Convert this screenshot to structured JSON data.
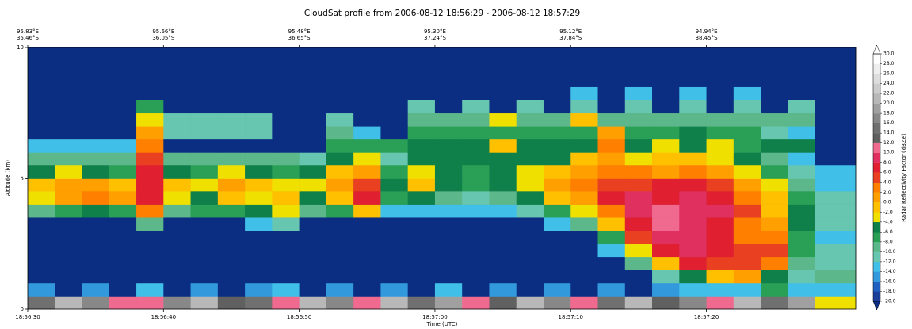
{
  "chart_data": {
    "type": "heatmap",
    "title": "CloudSat profile from 2006-08-12 18:56:29  -  2006-08-12 18:57:29",
    "xlabel": "Time (UTC)",
    "ylabel": "Altitude (km)",
    "colorbar_label": "Radar Reflectivity Factor (dBZe)",
    "xlim": [
      68190,
      68251
    ],
    "xticks": [
      {
        "value": 68190,
        "label": "18:56:30"
      },
      {
        "value": 68200,
        "label": "18:56:40"
      },
      {
        "value": 68210,
        "label": "18:56:50"
      },
      {
        "value": 68220,
        "label": "18:57:00"
      },
      {
        "value": 68230,
        "label": "18:57:10"
      },
      {
        "value": 68240,
        "label": "18:57:20"
      }
    ],
    "top_labels": [
      {
        "value": 68190,
        "lon": "95.83°E",
        "lat": "35.46°S"
      },
      {
        "value": 68200,
        "lon": "95.66°E",
        "lat": "36.05°S"
      },
      {
        "value": 68210,
        "lon": "95.48°E",
        "lat": "36.65°S"
      },
      {
        "value": 68220,
        "lon": "95.30°E",
        "lat": "37.24°S"
      },
      {
        "value": 68230,
        "lon": "95.12°E",
        "lat": "37.84°S"
      },
      {
        "value": 68240,
        "lon": "94.94°E",
        "lat": "38.45°S"
      }
    ],
    "ylim": [
      0,
      10
    ],
    "yticks": [
      0,
      5,
      10
    ],
    "clim": [
      -20,
      30
    ],
    "cticks": [
      {
        "value": -20,
        "label": "-20.0"
      },
      {
        "value": -18,
        "label": "-18.0"
      },
      {
        "value": -16,
        "label": "-16.0"
      },
      {
        "value": -14,
        "label": "-14.0"
      },
      {
        "value": -12,
        "label": "-12.0"
      },
      {
        "value": -10,
        "label": "-10.0"
      },
      {
        "value": -8,
        "label": "-8.0"
      },
      {
        "value": -6,
        "label": "-6.0"
      },
      {
        "value": -4,
        "label": "-4.0"
      },
      {
        "value": -2,
        "label": "-2.0"
      },
      {
        "value": 0,
        "label": "0.0"
      },
      {
        "value": 2,
        "label": "2.0"
      },
      {
        "value": 4,
        "label": "4.0"
      },
      {
        "value": 6,
        "label": "6.0"
      },
      {
        "value": 8,
        "label": "8.0"
      },
      {
        "value": 10,
        "label": "10.0"
      },
      {
        "value": 12,
        "label": "12.0"
      },
      {
        "value": 14,
        "label": "14.0"
      },
      {
        "value": 16,
        "label": "16.0"
      },
      {
        "value": 18,
        "label": "18.0"
      },
      {
        "value": 20,
        "label": "20.0"
      },
      {
        "value": 22,
        "label": "22.0"
      },
      {
        "value": 24,
        "label": "24.0"
      },
      {
        "value": 26,
        "label": "26.0"
      },
      {
        "value": 28,
        "label": "28.0"
      },
      {
        "value": 30,
        "label": "30.0"
      }
    ],
    "colors": [
      "#1c3f9a",
      "#2060c0",
      "#3399dd",
      "#40c0e8",
      "#66c6b0",
      "#5cb88a",
      "#2aa056",
      "#10804a",
      "#f0e000",
      "#ffc000",
      "#ffa000",
      "#ff7f00",
      "#e84020",
      "#e02030",
      "#e03060",
      "#f06a90",
      "#606060",
      "#707070",
      "#888888",
      "#a0a0a0",
      "#b8b8b8",
      "#cccccc",
      "#dddddd",
      "#eeeeee",
      "#ffffff"
    ],
    "under_color": "#0b2e83",
    "over_color": "#ffffff",
    "time_bins": [
      68190,
      68192,
      68194,
      68196,
      68198,
      68200,
      68202,
      68204,
      68206,
      68208,
      68210,
      68212,
      68214,
      68216,
      68218,
      68220,
      68222,
      68224,
      68226,
      68228,
      68230,
      68232,
      68234,
      68236,
      68238,
      68240,
      68242,
      68244,
      68246,
      68248,
      68251
    ],
    "altitude_bins": [
      0,
      0.5,
      1,
      1.5,
      2,
      2.5,
      3,
      3.5,
      4,
      4.5,
      5,
      5.5,
      6,
      6.5,
      7,
      7.5,
      8,
      8.5,
      9,
      9.5,
      10
    ],
    "z": [
      [
        14,
        20,
        16,
        10,
        10,
        16,
        20,
        12,
        14,
        10,
        20,
        16,
        10,
        20,
        14,
        18,
        10,
        12,
        20,
        16,
        10,
        14,
        20,
        12,
        16,
        10,
        20,
        14,
        18,
        -4
      ],
      [
        -16,
        -30,
        -16,
        -30,
        -14,
        -30,
        -16,
        -30,
        -16,
        -14,
        -30,
        -16,
        -30,
        -16,
        -30,
        -14,
        -30,
        -16,
        -30,
        -16,
        -30,
        -16,
        -30,
        -16,
        -14,
        -14,
        -14,
        -8,
        -14,
        -14
      ],
      [
        -30,
        -30,
        -30,
        -30,
        -30,
        -30,
        -30,
        -30,
        -30,
        -30,
        -30,
        -30,
        -30,
        -30,
        -30,
        -30,
        -30,
        -30,
        -30,
        -30,
        -30,
        -30,
        -30,
        -12,
        -6,
        -2,
        0,
        -6,
        -12,
        -10
      ],
      [
        -30,
        -30,
        -30,
        -30,
        -30,
        -30,
        -30,
        -30,
        -30,
        -30,
        -30,
        -30,
        -30,
        -30,
        -30,
        -30,
        -30,
        -30,
        -30,
        -30,
        -30,
        -30,
        -10,
        -2,
        6,
        4,
        4,
        2,
        -10,
        -12
      ],
      [
        -30,
        -30,
        -30,
        -30,
        -30,
        -30,
        -30,
        -30,
        -30,
        -30,
        -30,
        -30,
        -30,
        -30,
        -30,
        -30,
        -30,
        -30,
        -30,
        -30,
        -30,
        -14,
        -4,
        6,
        8,
        6,
        4,
        4,
        -8,
        -12
      ],
      [
        -30,
        -30,
        -30,
        -30,
        -30,
        -30,
        -30,
        -30,
        -30,
        -30,
        -30,
        -30,
        -30,
        -30,
        -30,
        -30,
        -30,
        -30,
        -30,
        -30,
        -30,
        -8,
        4,
        8,
        8,
        6,
        2,
        2,
        -8,
        -14
      ],
      [
        -30,
        -30,
        -30,
        -30,
        -10,
        -30,
        -30,
        -30,
        -14,
        -12,
        -30,
        -30,
        -30,
        -30,
        -30,
        -30,
        -30,
        -30,
        -30,
        -14,
        -10,
        -2,
        6,
        10,
        8,
        6,
        2,
        0,
        -6,
        -12
      ],
      [
        -10,
        -8,
        -6,
        -8,
        2,
        -10,
        -8,
        -8,
        -6,
        -4,
        -10,
        -8,
        -2,
        -14,
        -14,
        -14,
        -14,
        -14,
        -12,
        -8,
        -4,
        2,
        8,
        10,
        8,
        8,
        4,
        -2,
        -6,
        -12
      ],
      [
        -4,
        0,
        2,
        0,
        6,
        -4,
        -6,
        -2,
        -4,
        -2,
        -6,
        -2,
        6,
        -8,
        -6,
        -10,
        -12,
        -10,
        -6,
        -2,
        0,
        6,
        8,
        6,
        8,
        6,
        2,
        -2,
        -8,
        -12
      ],
      [
        -2,
        0,
        0,
        -2,
        6,
        -2,
        -4,
        0,
        -2,
        -4,
        -4,
        0,
        4,
        -6,
        -2,
        -6,
        -8,
        -6,
        -4,
        0,
        2,
        4,
        4,
        6,
        6,
        4,
        0,
        -4,
        -10,
        -14
      ],
      [
        -6,
        -4,
        -6,
        -8,
        6,
        -6,
        -8,
        -4,
        -6,
        -8,
        -6,
        -2,
        0,
        -8,
        -4,
        -6,
        -8,
        -6,
        -4,
        -2,
        0,
        2,
        2,
        0,
        2,
        0,
        -4,
        -8,
        -12,
        -14
      ],
      [
        -10,
        -10,
        -10,
        -10,
        4,
        -10,
        -10,
        -10,
        -10,
        -10,
        -12,
        -6,
        -4,
        -12,
        -6,
        -6,
        -6,
        -6,
        -6,
        -6,
        -2,
        0,
        -4,
        -2,
        -2,
        -4,
        -6,
        -10,
        -14,
        -30
      ],
      [
        -14,
        -14,
        -14,
        -14,
        2,
        -30,
        -30,
        -30,
        -30,
        -30,
        -30,
        -8,
        -8,
        -8,
        -6,
        -6,
        -6,
        -2,
        -6,
        -6,
        -6,
        2,
        -6,
        -4,
        -6,
        -4,
        -8,
        -6,
        -6,
        -30
      ],
      [
        -30,
        -30,
        -30,
        -30,
        0,
        -12,
        -12,
        -12,
        -12,
        -30,
        -30,
        -10,
        -14,
        -30,
        -8,
        -8,
        -8,
        -8,
        -8,
        -8,
        -8,
        0,
        -8,
        -8,
        -6,
        -8,
        -8,
        -12,
        -14,
        -30
      ],
      [
        -30,
        -30,
        -30,
        -30,
        -4,
        -12,
        -12,
        -12,
        -12,
        -30,
        -30,
        -12,
        -30,
        -30,
        -10,
        -10,
        -10,
        -4,
        -10,
        -10,
        -2,
        -10,
        -10,
        -10,
        -10,
        -10,
        -10,
        -10,
        -10,
        -30
      ],
      [
        -30,
        -30,
        -30,
        -30,
        -8,
        -30,
        -30,
        -30,
        -30,
        -30,
        -30,
        -30,
        -30,
        -30,
        -12,
        -30,
        -12,
        -30,
        -12,
        -30,
        -12,
        -30,
        -12,
        -30,
        -12,
        -30,
        -12,
        -30,
        -12,
        -30
      ],
      [
        -30,
        -30,
        -30,
        -30,
        -30,
        -30,
        -30,
        -30,
        -30,
        -30,
        -30,
        -30,
        -30,
        -30,
        -30,
        -30,
        -30,
        -30,
        -30,
        -30,
        -14,
        -30,
        -14,
        -30,
        -14,
        -30,
        -14,
        -30,
        -30,
        -30
      ],
      [
        -30,
        -30,
        -30,
        -30,
        -30,
        -30,
        -30,
        -30,
        -30,
        -30,
        -30,
        -30,
        -30,
        -30,
        -30,
        -30,
        -30,
        -30,
        -30,
        -30,
        -30,
        -30,
        -30,
        -30,
        -30,
        -30,
        -30,
        -30,
        -30,
        -30
      ],
      [
        -30,
        -30,
        -30,
        -30,
        -30,
        -30,
        -30,
        -30,
        -30,
        -30,
        -30,
        -30,
        -30,
        -30,
        -30,
        -30,
        -30,
        -30,
        -30,
        -30,
        -30,
        -30,
        -30,
        -30,
        -30,
        -30,
        -30,
        -30,
        -30,
        -30
      ],
      [
        -30,
        -30,
        -30,
        -30,
        -30,
        -30,
        -30,
        -30,
        -30,
        -30,
        -30,
        -30,
        -30,
        -30,
        -30,
        -30,
        -30,
        -30,
        -30,
        -30,
        -30,
        -30,
        -30,
        -30,
        -30,
        -30,
        -30,
        -30,
        -30,
        -30
      ]
    ]
  }
}
